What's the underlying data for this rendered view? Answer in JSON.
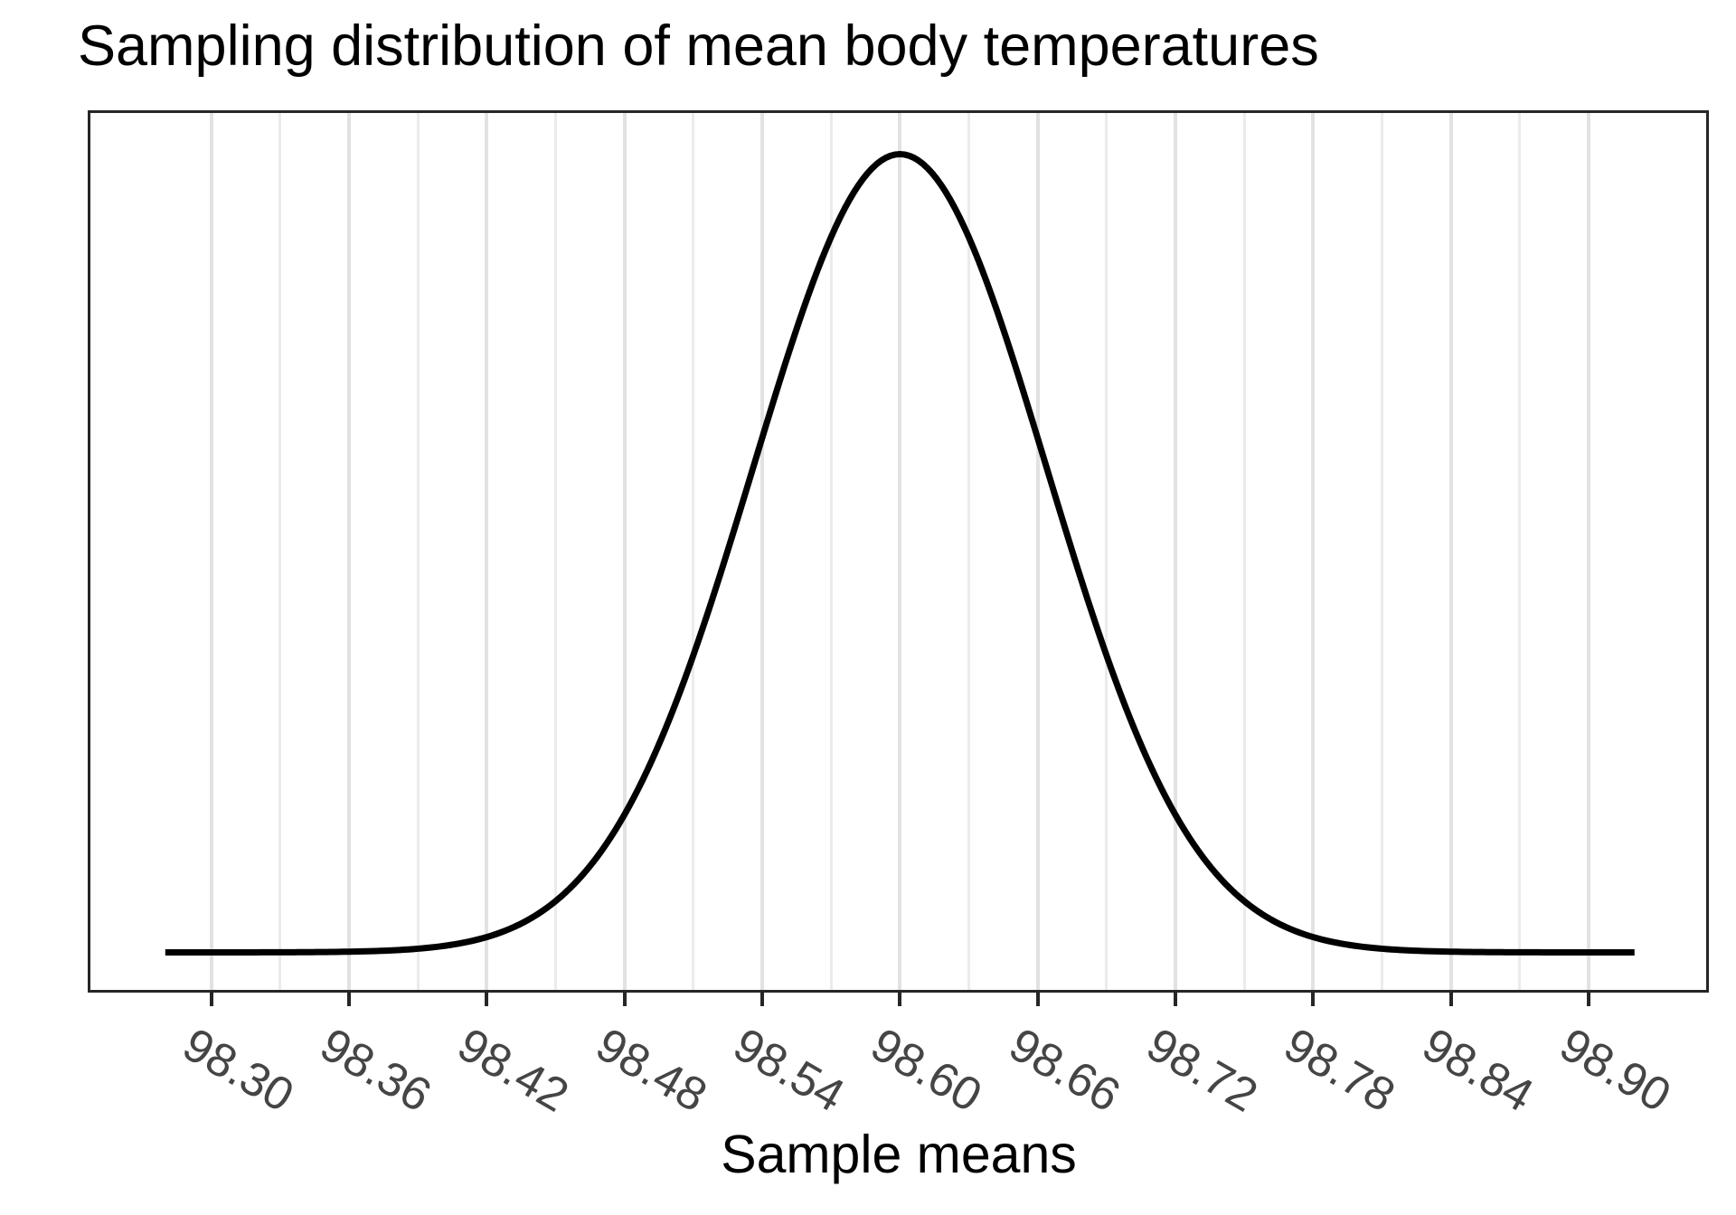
{
  "chart": {
    "title": "Sampling distribution of mean body temperatures",
    "x_axis_label": "Sample means"
  },
  "chart_data": {
    "type": "line",
    "subtype": "normal-density-curve",
    "title": "Sampling distribution of mean body temperatures",
    "xlabel": "Sample means",
    "ylabel": "",
    "legend_position": "none",
    "grid": "vertical-only",
    "x_axis_range": [
      98.247,
      98.952
    ],
    "x_tick_labels": [
      "98.30",
      "98.36",
      "98.42",
      "98.48",
      "98.54",
      "98.60",
      "98.66",
      "98.72",
      "98.78",
      "98.84",
      "98.90"
    ],
    "x_major_breaks": [
      98.3,
      98.36,
      98.42,
      98.48,
      98.54,
      98.6,
      98.66,
      98.72,
      98.78,
      98.84,
      98.9
    ],
    "x_minor_breaks": [
      98.33,
      98.39,
      98.45,
      98.51,
      98.57,
      98.63,
      98.69,
      98.75,
      98.81,
      98.87
    ],
    "curve": {
      "distribution": "normal",
      "mean": 98.6,
      "sd": 0.064,
      "x_start": 98.28,
      "x_end": 98.92,
      "peak_density": 6.232
    },
    "points": [
      {
        "x": 98.28,
        "density": 0.0
      },
      {
        "x": 98.32,
        "density": 0.0
      },
      {
        "x": 98.36,
        "density": 0.006
      },
      {
        "x": 98.4,
        "density": 0.047
      },
      {
        "x": 98.44,
        "density": 0.274
      },
      {
        "x": 98.48,
        "density": 1.074
      },
      {
        "x": 98.52,
        "density": 2.853
      },
      {
        "x": 98.56,
        "density": 5.126
      },
      {
        "x": 98.6,
        "density": 6.232
      },
      {
        "x": 98.64,
        "density": 5.126
      },
      {
        "x": 98.68,
        "density": 2.853
      },
      {
        "x": 98.72,
        "density": 1.074
      },
      {
        "x": 98.76,
        "density": 0.274
      },
      {
        "x": 98.8,
        "density": 0.047
      },
      {
        "x": 98.84,
        "density": 0.006
      },
      {
        "x": 98.88,
        "density": 0.0
      },
      {
        "x": 98.92,
        "density": 0.0
      }
    ],
    "colors": {
      "curve": "#000000",
      "panel_border": "#262626",
      "grid_major": "#e2e2e2",
      "grid_minor": "#ebebeb",
      "tick_mark": "#262626",
      "tick_label": "#454545",
      "title_text": "#000000",
      "background": "#ffffff"
    }
  }
}
